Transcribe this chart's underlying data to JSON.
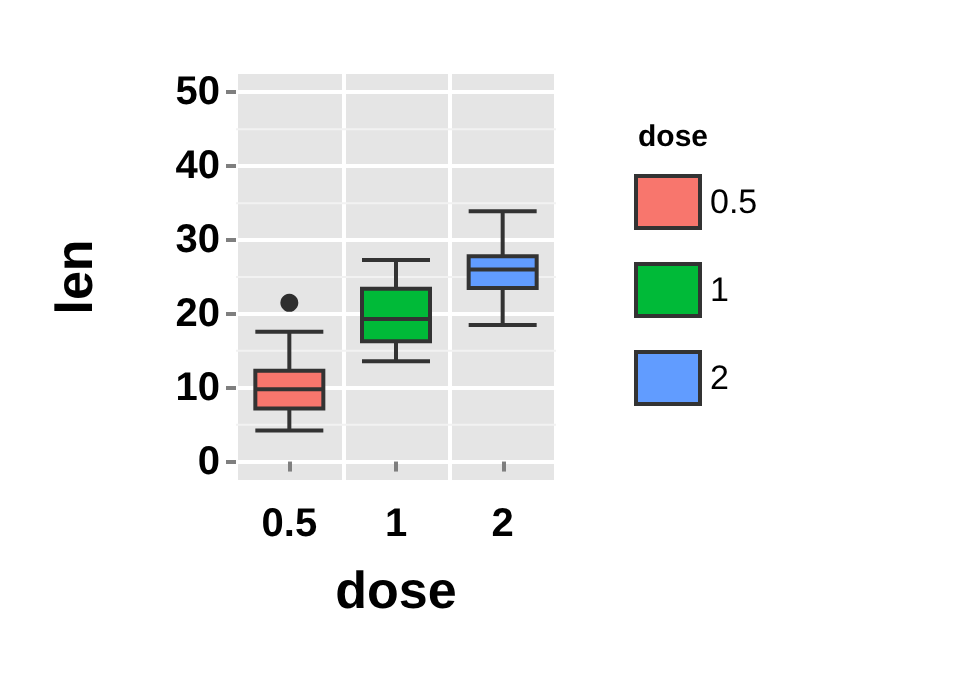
{
  "chart_data": {
    "type": "box",
    "xlabel": "dose",
    "ylabel": "len",
    "legend_title": "dose",
    "categories": [
      "0.5",
      "1",
      "2"
    ],
    "series": [
      {
        "name": "0.5",
        "color": "#f8766d",
        "boxes": [
          {
            "low": 4.2,
            "q1": 7.2,
            "median": 9.8,
            "q3": 12.3,
            "high": 17.6,
            "outliers": [
              21.5
            ]
          },
          null,
          null
        ]
      },
      {
        "name": "1",
        "color": "#00ba38",
        "boxes": [
          null,
          {
            "low": 13.6,
            "q1": 16.3,
            "median": 19.3,
            "q3": 23.4,
            "high": 27.3
          },
          null
        ]
      },
      {
        "name": "2",
        "color": "#619cff",
        "boxes": [
          null,
          null,
          {
            "low": 18.5,
            "q1": 23.5,
            "median": 26,
            "q3": 27.8,
            "high": 33.9
          }
        ]
      }
    ],
    "ylim": [
      -2.5,
      52.5
    ],
    "yticks": [
      0,
      10,
      20,
      30,
      40,
      50
    ],
    "grid": true,
    "legend": "right"
  }
}
